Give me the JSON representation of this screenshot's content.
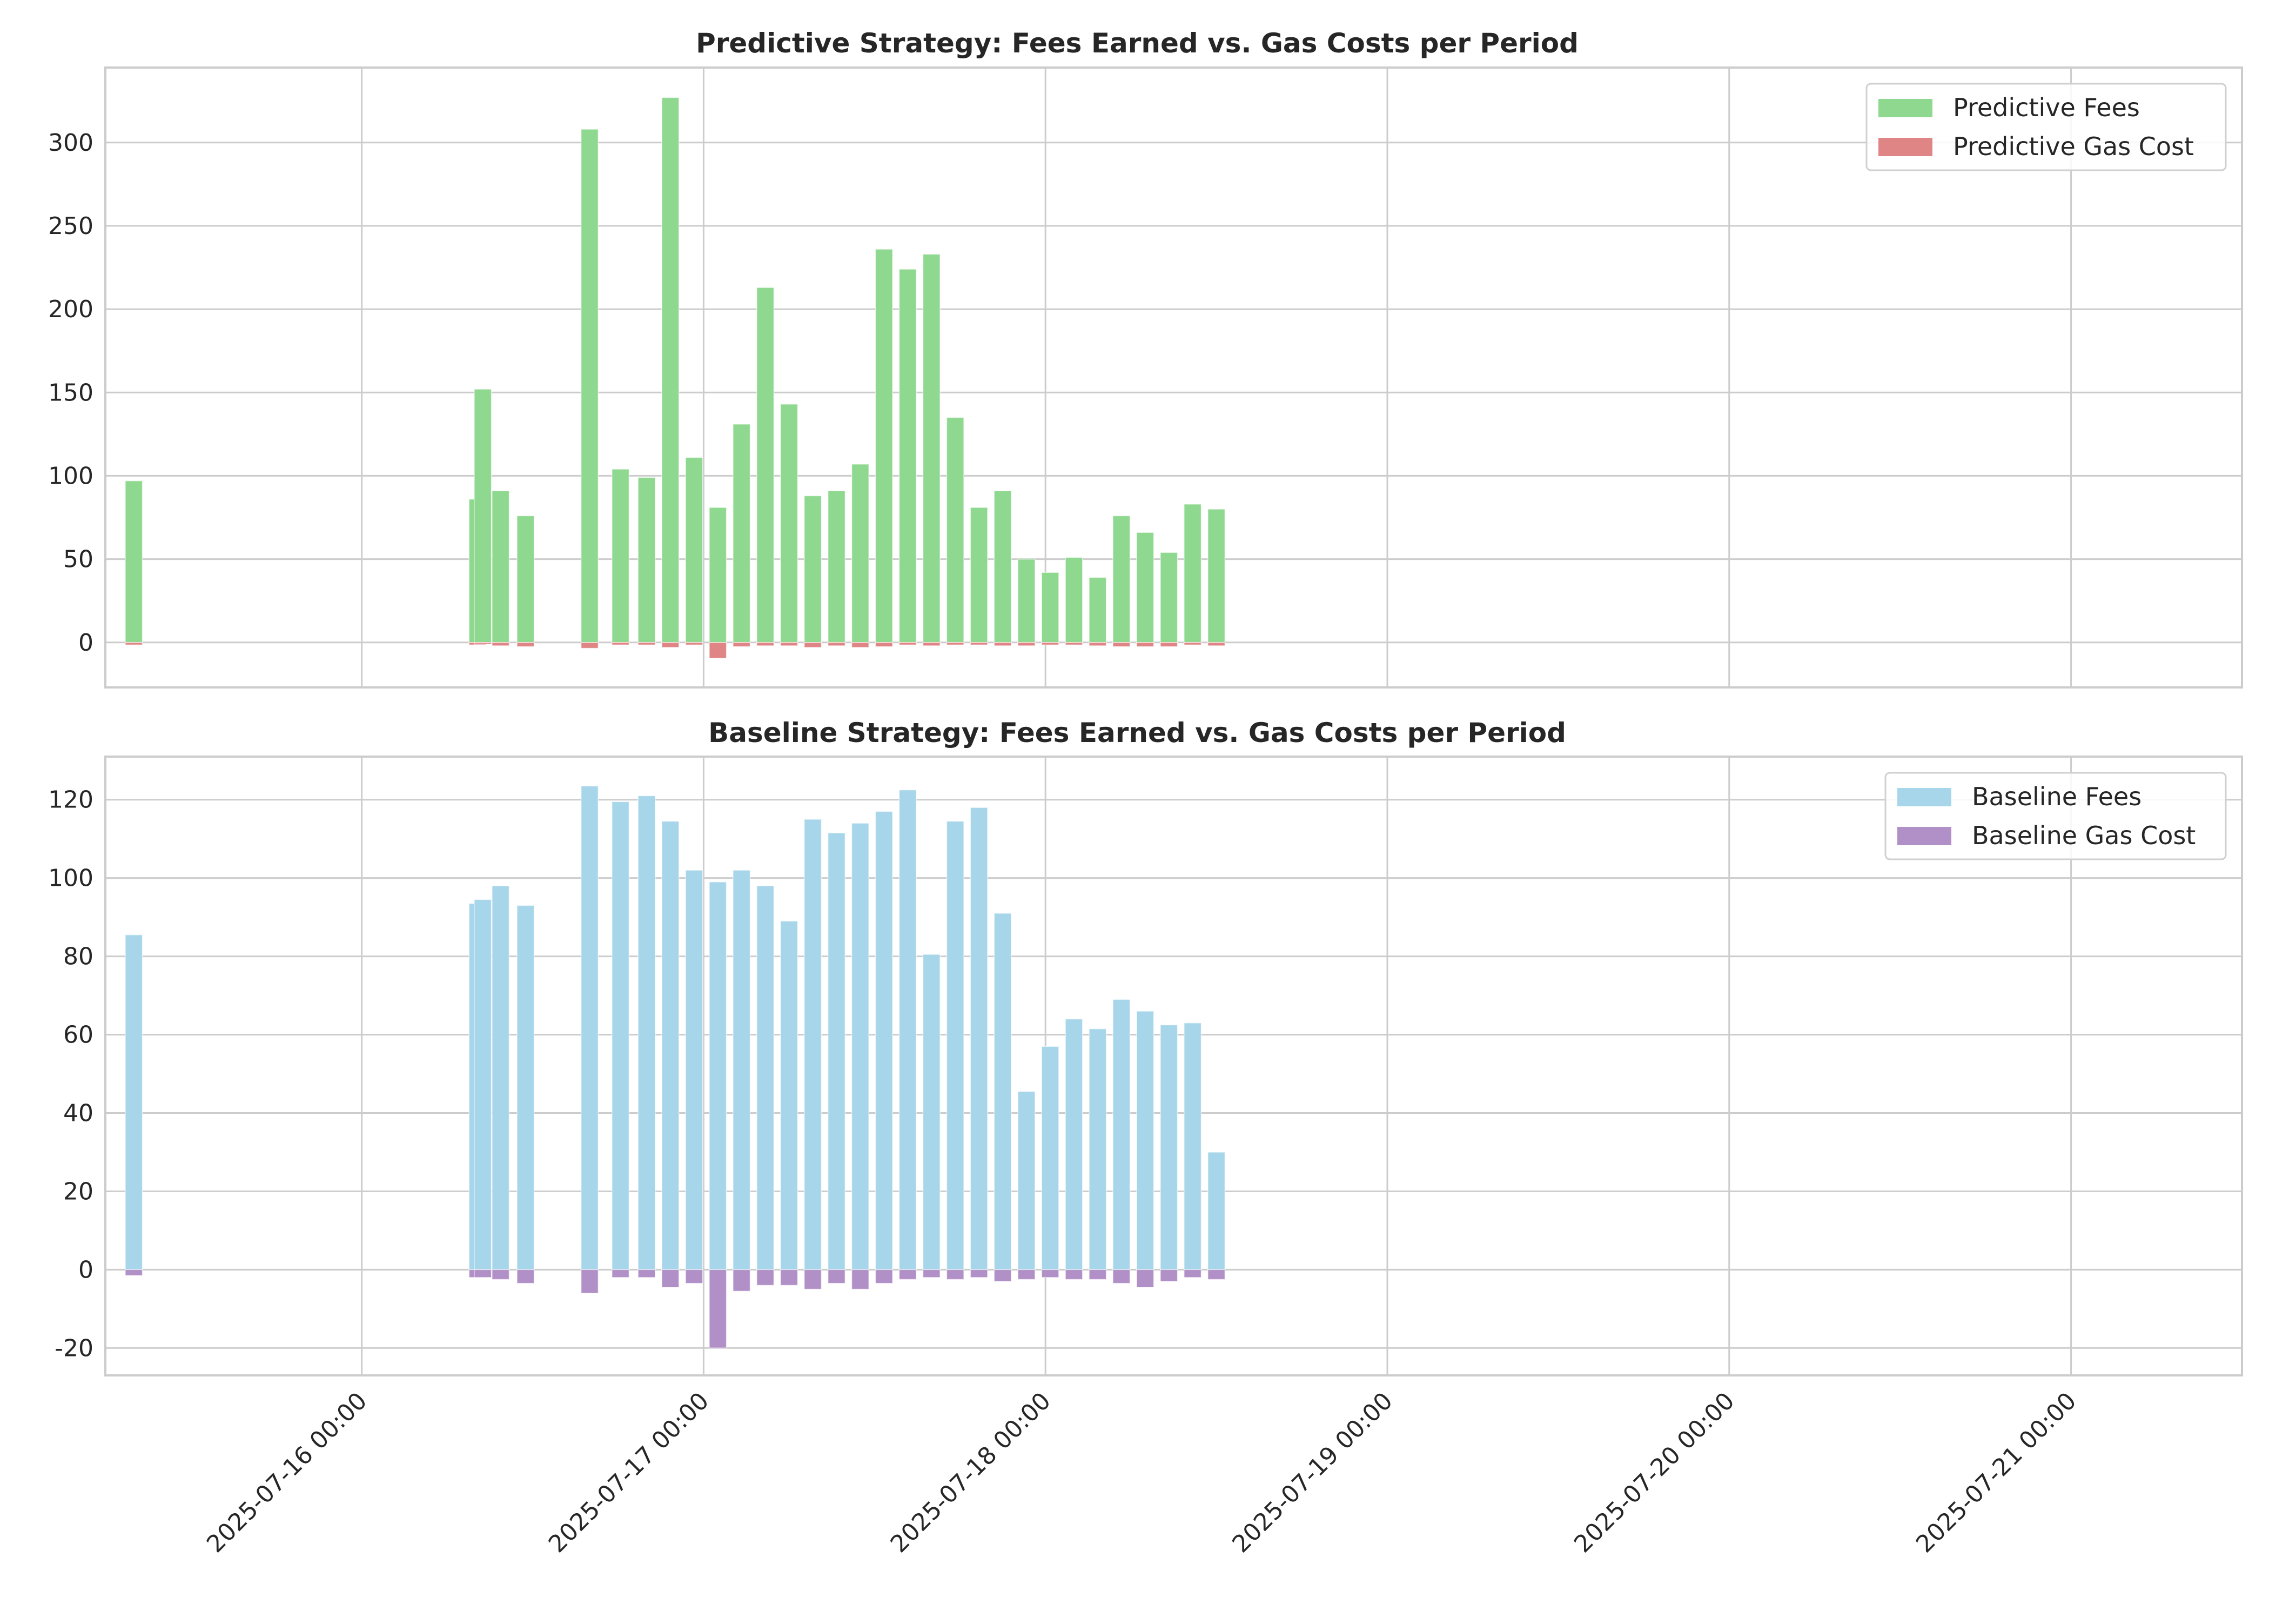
{
  "colors": {
    "predictive_fees": "#8fd88f",
    "predictive_gas": "#e08585",
    "baseline_fees": "#a7d6ea",
    "baseline_gas": "#b190c8",
    "grid": "#cccccc",
    "axes_edge": "#cccccc",
    "text": "#262626"
  },
  "chart_data": [
    {
      "type": "bar",
      "title": "Predictive Strategy: Fees Earned vs. Gas Costs per Period",
      "xlabel": "",
      "ylabel": "",
      "x_axis": "datetime",
      "x_range": [
        "2025-07-15 06:00",
        "2025-07-21 12:00"
      ],
      "ylim": [
        -27,
        345
      ],
      "y_ticks": [
        0,
        50,
        100,
        150,
        200,
        250,
        300
      ],
      "y_tick_labels": [
        "0",
        "50",
        "100",
        "150",
        "200",
        "250",
        "300"
      ],
      "x_ticks": [
        "2025-07-16 00:00",
        "2025-07-17 00:00",
        "2025-07-18 00:00",
        "2025-07-19 00:00",
        "2025-07-20 00:00",
        "2025-07-21 00:00"
      ],
      "x_tick_labels": [
        "2025-07-16 00:00",
        "2025-07-17 00:00",
        "2025-07-18 00:00",
        "2025-07-19 00:00",
        "2025-07-20 00:00",
        "2025-07-21 00:00"
      ],
      "bar_width_hours": 1.2,
      "grid": true,
      "legend_position": "top-right",
      "x": [
        "2025-07-15 08:00",
        "2025-07-16 08:08",
        "2025-07-16 08:30",
        "2025-07-16 09:45",
        "2025-07-16 11:30",
        "2025-07-16 16:00",
        "2025-07-16 18:10",
        "2025-07-16 20:00",
        "2025-07-16 21:40",
        "2025-07-16 23:20",
        "2025-07-17 01:00",
        "2025-07-17 02:40",
        "2025-07-17 04:20",
        "2025-07-17 06:00",
        "2025-07-17 07:40",
        "2025-07-17 09:20",
        "2025-07-17 11:00",
        "2025-07-17 12:40",
        "2025-07-17 14:20",
        "2025-07-17 16:00",
        "2025-07-17 17:40",
        "2025-07-17 19:20",
        "2025-07-17 21:00",
        "2025-07-17 22:40",
        "2025-07-18 00:20",
        "2025-07-18 02:00",
        "2025-07-18 03:40",
        "2025-07-18 05:20",
        "2025-07-18 07:00",
        "2025-07-18 08:40",
        "2025-07-18 10:20",
        "2025-07-18 12:00",
        "2025-07-18 13:40",
        "2025-07-18 15:20",
        "2025-07-18 17:00",
        "2025-07-18 18:40",
        "2025-07-18 20:20",
        "2025-07-18 22:00"
      ],
      "series": [
        {
          "name": "Predictive Fees",
          "color_key": "predictive_fees",
          "values": [
            97,
            86,
            152,
            91,
            76,
            308,
            104,
            99,
            327,
            111,
            81,
            131,
            213,
            143,
            88,
            91,
            107,
            236,
            224,
            233,
            135,
            81,
            91,
            50,
            42,
            51,
            39,
            76,
            66,
            54,
            83,
            80,
            0,
            0,
            0,
            0,
            0,
            0
          ]
        },
        {
          "name": "Predictive Gas Cost",
          "color_key": "predictive_gas",
          "values": [
            -1.5,
            -1.5,
            -1.0,
            -2.0,
            -2.5,
            -3.5,
            -1.5,
            -1.5,
            -3.0,
            -1.5,
            -9.5,
            -2.5,
            -2.0,
            -2.0,
            -3.0,
            -2.0,
            -3.0,
            -2.5,
            -1.5,
            -2.0,
            -1.5,
            -1.5,
            -2.0,
            -2.0,
            -1.5,
            -1.5,
            -2.0,
            -2.5,
            -2.5,
            -2.5,
            -1.5,
            -2.0,
            0,
            0,
            0,
            0,
            0,
            0
          ]
        }
      ]
    },
    {
      "type": "bar",
      "title": "Baseline Strategy: Fees Earned vs. Gas Costs per Period",
      "xlabel": "",
      "ylabel": "",
      "x_axis": "datetime",
      "x_range": [
        "2025-07-15 06:00",
        "2025-07-21 12:00"
      ],
      "ylim": [
        -27,
        131
      ],
      "y_ticks": [
        -20,
        0,
        20,
        40,
        60,
        80,
        100,
        120
      ],
      "y_tick_labels": [
        "-20",
        "0",
        "20",
        "40",
        "60",
        "80",
        "100",
        "120"
      ],
      "x_ticks": [
        "2025-07-16 00:00",
        "2025-07-17 00:00",
        "2025-07-18 00:00",
        "2025-07-19 00:00",
        "2025-07-20 00:00",
        "2025-07-21 00:00"
      ],
      "x_tick_labels": [
        "2025-07-16 00:00",
        "2025-07-17 00:00",
        "2025-07-18 00:00",
        "2025-07-19 00:00",
        "2025-07-20 00:00",
        "2025-07-21 00:00"
      ],
      "bar_width_hours": 1.2,
      "grid": true,
      "legend_position": "top-right",
      "x": [
        "2025-07-15 08:00",
        "2025-07-16 08:08",
        "2025-07-16 08:30",
        "2025-07-16 09:45",
        "2025-07-16 11:30",
        "2025-07-16 16:00",
        "2025-07-16 18:10",
        "2025-07-16 20:00",
        "2025-07-16 21:40",
        "2025-07-16 23:20",
        "2025-07-17 01:00",
        "2025-07-17 02:40",
        "2025-07-17 04:20",
        "2025-07-17 06:00",
        "2025-07-17 07:40",
        "2025-07-17 09:20",
        "2025-07-17 11:00",
        "2025-07-17 12:40",
        "2025-07-17 14:20",
        "2025-07-17 16:00",
        "2025-07-17 17:40",
        "2025-07-17 19:20",
        "2025-07-17 21:00",
        "2025-07-17 22:40",
        "2025-07-18 00:20",
        "2025-07-18 02:00",
        "2025-07-18 03:40",
        "2025-07-18 05:20",
        "2025-07-18 07:00",
        "2025-07-18 08:40",
        "2025-07-18 10:20",
        "2025-07-18 12:00",
        "2025-07-18 13:40",
        "2025-07-18 15:20",
        "2025-07-18 17:00",
        "2025-07-18 18:40",
        "2025-07-18 20:20",
        "2025-07-18 22:00"
      ],
      "series": [
        {
          "name": "Baseline Fees",
          "color_key": "baseline_fees",
          "values": [
            85.5,
            93.5,
            94.5,
            98,
            93,
            123.5,
            119.5,
            121,
            114.5,
            102,
            99,
            102,
            98,
            89,
            115,
            111.5,
            114,
            117,
            122.5,
            80.5,
            114.5,
            118,
            91,
            45.5,
            57,
            64,
            61.5,
            69,
            66,
            62.5,
            63,
            30,
            0,
            0,
            0,
            0,
            0,
            0
          ]
        },
        {
          "name": "Baseline Gas Cost",
          "color_key": "baseline_gas",
          "values": [
            -1.5,
            -2.0,
            -2.0,
            -2.5,
            -3.5,
            -6.0,
            -2.0,
            -2.0,
            -4.5,
            -3.5,
            -20,
            -5.5,
            -4.0,
            -4.0,
            -5.0,
            -3.5,
            -5.0,
            -3.5,
            -2.5,
            -2.0,
            -2.5,
            -2.0,
            -3.0,
            -2.5,
            -2.0,
            -2.5,
            -2.5,
            -3.5,
            -4.5,
            -3.0,
            -2.0,
            -2.5,
            0,
            0,
            0,
            0,
            0,
            0
          ]
        }
      ]
    }
  ]
}
